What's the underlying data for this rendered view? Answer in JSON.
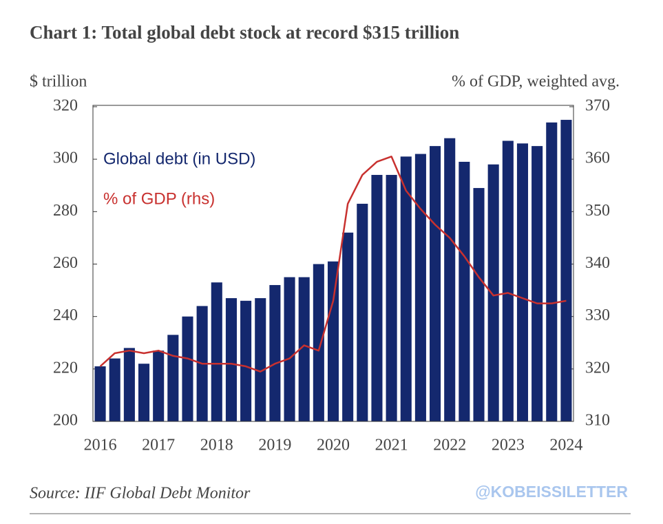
{
  "chart_data": {
    "type": "bar_line",
    "title": "Chart 1: Total global debt stock at record $315 trillion",
    "ylabel": "$ trillion",
    "y2label": "% of GDP, weighted avg.",
    "source": "Source: IIF Global Debt Monitor",
    "watermark": "@KOBEISSILETTER",
    "categories": [
      "2016",
      null,
      null,
      null,
      "2017",
      null,
      null,
      null,
      "2018",
      null,
      null,
      null,
      "2019",
      null,
      null,
      null,
      "2020",
      null,
      null,
      null,
      "2021",
      null,
      null,
      null,
      "2022",
      null,
      null,
      null,
      "2023",
      null,
      null,
      null,
      "2024"
    ],
    "series": [
      {
        "name": "Global debt (in USD)",
        "color": "#14286e",
        "type": "bar",
        "values": [
          221,
          224,
          228,
          222,
          227,
          233,
          240,
          244,
          253,
          247,
          246,
          247,
          252,
          255,
          255,
          260,
          261,
          272,
          283,
          294,
          294,
          301,
          302,
          305,
          308,
          299,
          289,
          298,
          307,
          306,
          305,
          314,
          315
        ]
      },
      {
        "name": "% of GDP (rhs)",
        "color": "#c8312f",
        "type": "line",
        "axis": "y2",
        "values": [
          320.5,
          323,
          323.5,
          323,
          323.5,
          322.5,
          322,
          321,
          321,
          321,
          320.5,
          319.5,
          321,
          322,
          324.5,
          323.5,
          333,
          351.5,
          357,
          359.5,
          360.5,
          354,
          350.5,
          347.5,
          345,
          341.5,
          337.5,
          334,
          334.5,
          333.5,
          332.5,
          332.5,
          333
        ]
      }
    ],
    "ylim": [
      200,
      320
    ],
    "yticks": [
      200,
      220,
      240,
      260,
      280,
      300,
      320
    ],
    "y2lim": [
      310,
      370
    ],
    "y2ticks": [
      310,
      320,
      330,
      340,
      350,
      360,
      370
    ]
  }
}
